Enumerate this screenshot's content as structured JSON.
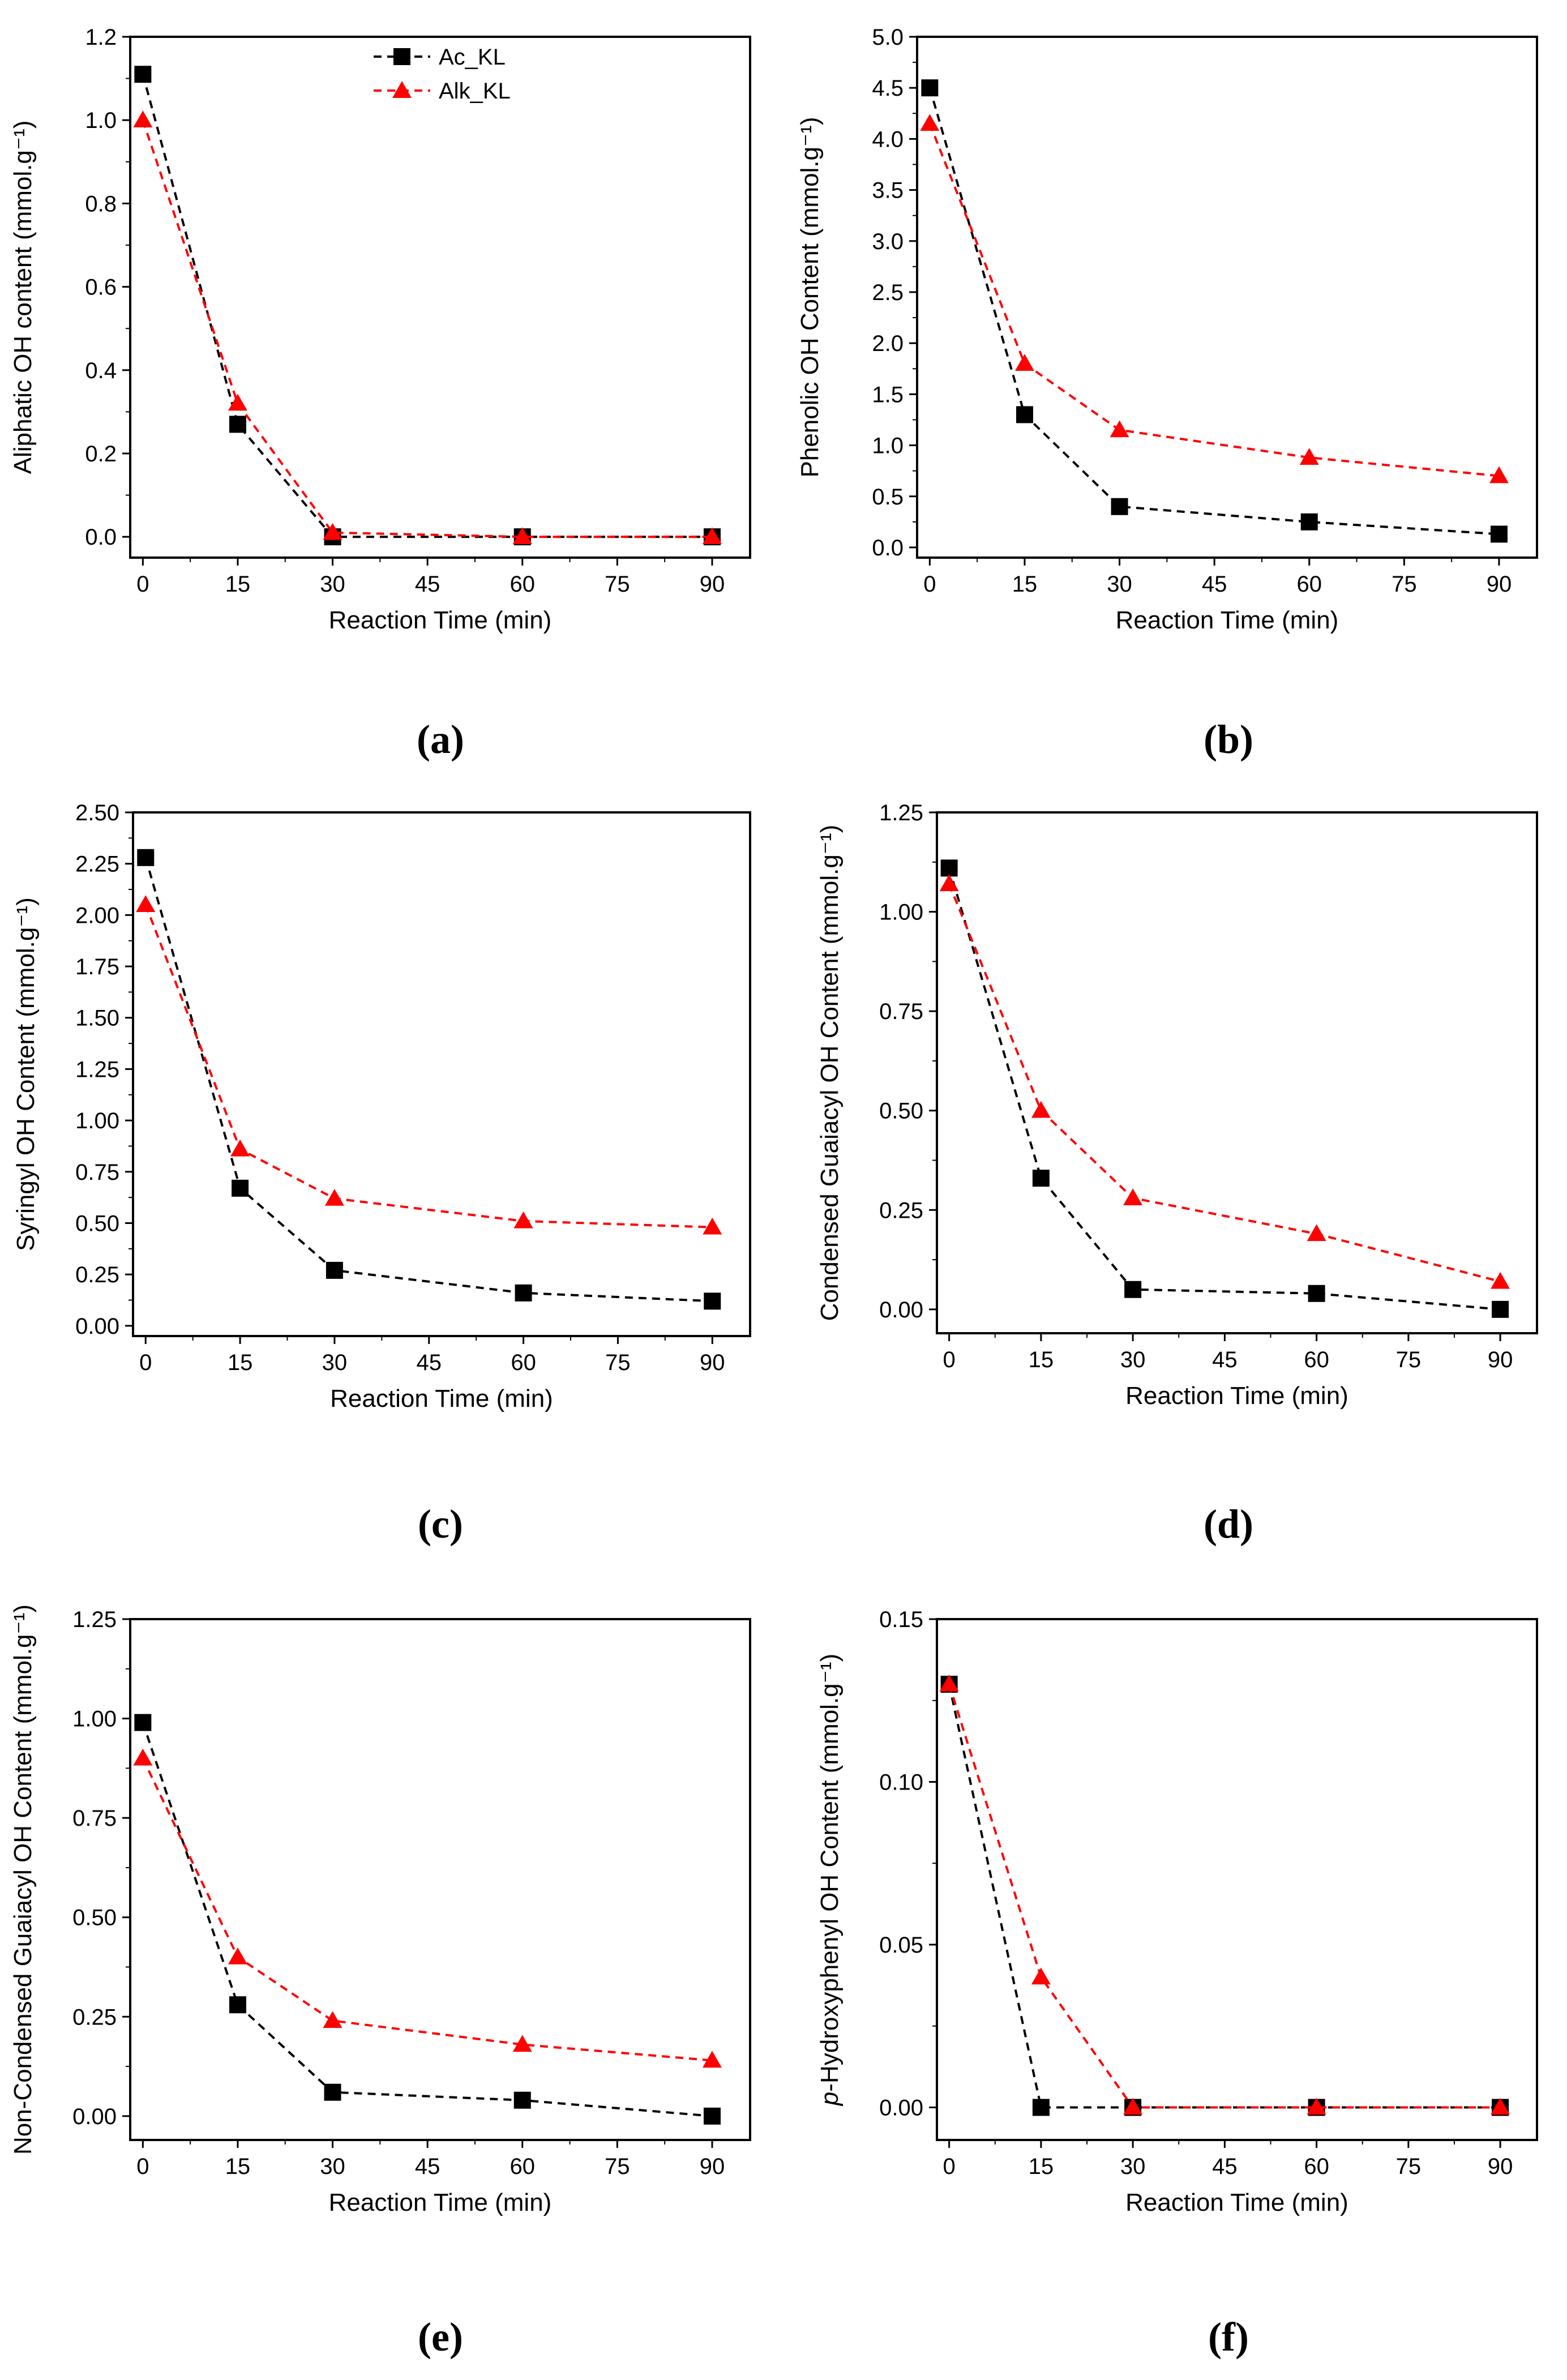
{
  "legend": {
    "series": [
      "Ac_KL",
      "Alk_KL"
    ]
  },
  "colors": {
    "Ac_KL": "#000000",
    "Alk_KL": "#ff0000"
  },
  "chart_data": [
    {
      "type": "line",
      "panel": "(a)",
      "xlabel": "Reaction Time (min)",
      "ylabel": "Aliphatic OH content (mmol.g⁻¹)",
      "xlim": [
        -2,
        96
      ],
      "ylim": [
        -0.05,
        1.2
      ],
      "xticks": [
        0,
        15,
        30,
        45,
        60,
        75,
        90
      ],
      "yticks": [
        0.0,
        0.2,
        0.4,
        0.6,
        0.8,
        1.0,
        1.2
      ],
      "ytick_labels": [
        "0.0",
        "0.2",
        "0.4",
        "0.6",
        "0.8",
        "1.0",
        "1.2"
      ],
      "x": [
        0,
        15,
        30,
        60,
        90
      ],
      "legend": "top-center",
      "series": [
        {
          "name": "Ac_KL",
          "values": [
            1.11,
            0.27,
            0.0,
            0.0,
            0.0
          ]
        },
        {
          "name": "Alk_KL",
          "values": [
            1.0,
            0.32,
            0.01,
            0.0,
            0.0
          ]
        }
      ]
    },
    {
      "type": "line",
      "panel": "(b)",
      "xlabel": "Reaction Time (min)",
      "ylabel": "Phenolic OH Content (mmol.g⁻¹)",
      "xlim": [
        -2,
        96
      ],
      "ylim": [
        -0.1,
        5.0
      ],
      "xticks": [
        0,
        15,
        30,
        45,
        60,
        75,
        90
      ],
      "yticks": [
        0.0,
        0.5,
        1.0,
        1.5,
        2.0,
        2.5,
        3.0,
        3.5,
        4.0,
        4.5,
        5.0
      ],
      "ytick_labels": [
        "0.0",
        "0.5",
        "1.0",
        "1.5",
        "2.0",
        "2.5",
        "3.0",
        "3.5",
        "4.0",
        "4.5",
        "5.0"
      ],
      "x": [
        0,
        15,
        30,
        60,
        90
      ],
      "series": [
        {
          "name": "Ac_KL",
          "values": [
            4.5,
            1.3,
            0.4,
            0.25,
            0.13
          ]
        },
        {
          "name": "Alk_KL",
          "values": [
            4.15,
            1.8,
            1.15,
            0.88,
            0.7
          ]
        }
      ]
    },
    {
      "type": "line",
      "panel": "(c)",
      "xlabel": "Reaction Time (min)",
      "ylabel": "Syringyl OH Content (mmol.g⁻¹)",
      "xlim": [
        -2,
        96
      ],
      "ylim": [
        -0.05,
        2.5
      ],
      "xticks": [
        0,
        15,
        30,
        45,
        60,
        75,
        90
      ],
      "yticks": [
        0.0,
        0.25,
        0.5,
        0.75,
        1.0,
        1.25,
        1.5,
        1.75,
        2.0,
        2.25,
        2.5
      ],
      "ytick_labels": [
        "0.00",
        "0.25",
        "0.50",
        "0.75",
        "1.00",
        "1.25",
        "1.50",
        "1.75",
        "2.00",
        "2.25",
        "2.50"
      ],
      "x": [
        0,
        15,
        30,
        60,
        90
      ],
      "series": [
        {
          "name": "Ac_KL",
          "values": [
            2.28,
            0.67,
            0.27,
            0.16,
            0.12
          ]
        },
        {
          "name": "Alk_KL",
          "values": [
            2.05,
            0.86,
            0.62,
            0.51,
            0.48
          ]
        }
      ]
    },
    {
      "type": "line",
      "panel": "(d)",
      "xlabel": "Reaction Time (min)",
      "ylabel": "Condensed Guaiacyl OH Content (mmol.g⁻¹)",
      "xlim": [
        -2,
        96
      ],
      "ylim": [
        -0.06,
        1.25
      ],
      "xticks": [
        0,
        15,
        30,
        45,
        60,
        75,
        90
      ],
      "yticks": [
        0.0,
        0.25,
        0.5,
        0.75,
        1.0,
        1.25
      ],
      "ytick_labels": [
        "0.00",
        "0.25",
        "0.50",
        "0.75",
        "1.00",
        "1.25"
      ],
      "x": [
        0,
        15,
        30,
        60,
        90
      ],
      "series": [
        {
          "name": "Ac_KL",
          "values": [
            1.11,
            0.33,
            0.05,
            0.04,
            0.0
          ]
        },
        {
          "name": "Alk_KL",
          "values": [
            1.07,
            0.5,
            0.28,
            0.19,
            0.07
          ]
        }
      ]
    },
    {
      "type": "line",
      "panel": "(e)",
      "xlabel": "Reaction Time (min)",
      "ylabel": "Non-Condensed Guaiacyl OH Content (mmol.g⁻¹)",
      "xlim": [
        -2,
        96
      ],
      "ylim": [
        -0.06,
        1.25
      ],
      "xticks": [
        0,
        15,
        30,
        45,
        60,
        75,
        90
      ],
      "yticks": [
        0.0,
        0.25,
        0.5,
        0.75,
        1.0,
        1.25
      ],
      "ytick_labels": [
        "0.00",
        "0.25",
        "0.50",
        "0.75",
        "1.00",
        "1.25"
      ],
      "x": [
        0,
        15,
        30,
        60,
        90
      ],
      "series": [
        {
          "name": "Ac_KL",
          "values": [
            0.99,
            0.28,
            0.06,
            0.04,
            0.0
          ]
        },
        {
          "name": "Alk_KL",
          "values": [
            0.9,
            0.4,
            0.24,
            0.18,
            0.14
          ]
        }
      ]
    },
    {
      "type": "line",
      "panel": "(f)",
      "xlabel": "Reaction Time (min)",
      "ylabel": "p-Hydroxyphenyl OH Content (mmol.g⁻¹)",
      "xlim": [
        -2,
        96
      ],
      "ylim": [
        -0.01,
        0.15
      ],
      "xticks": [
        0,
        15,
        30,
        45,
        60,
        75,
        90
      ],
      "yticks": [
        0.0,
        0.05,
        0.1,
        0.15
      ],
      "ytick_labels": [
        "0.00",
        "0.05",
        "0.10",
        "0.15"
      ],
      "x": [
        0,
        15,
        30,
        60,
        90
      ],
      "series": [
        {
          "name": "Ac_KL",
          "values": [
            0.13,
            0.0,
            0.0,
            0.0,
            0.0
          ]
        },
        {
          "name": "Alk_KL",
          "values": [
            0.13,
            0.04,
            0.0,
            0.0,
            0.0
          ]
        }
      ]
    }
  ]
}
